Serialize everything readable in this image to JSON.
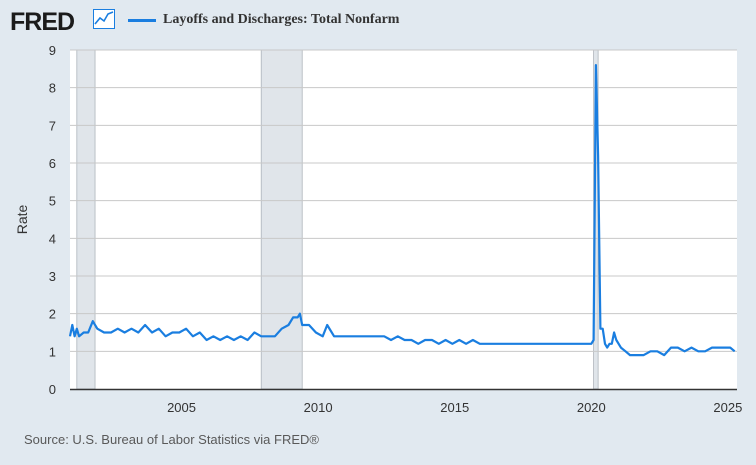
{
  "header": {
    "logo_text": "FRED",
    "legend_label": "Layoffs and Discharges: Total Nonfarm"
  },
  "footer": {
    "source": "Source: U.S. Bureau of Labor Statistics via FRED®"
  },
  "colors": {
    "series": "#1a7ee0",
    "recession": "#e0e5ea",
    "grid": "#c8c8c8",
    "page_bg": "#e1e9f0",
    "plot_bg": "#ffffff"
  },
  "chart_data": {
    "type": "line",
    "title": "Layoffs and Discharges: Total Nonfarm",
    "xlabel": "",
    "ylabel": "Rate",
    "x_range": [
      "2000-12",
      "2025-05"
    ],
    "ylim": [
      0,
      9
    ],
    "y_ticks": [
      0,
      1,
      2,
      3,
      4,
      5,
      6,
      7,
      8,
      9
    ],
    "x_ticks": [
      "2005",
      "2010",
      "2015",
      "2020",
      "2025"
    ],
    "grid": true,
    "recessions": [
      {
        "start": "2001-03",
        "end": "2001-11"
      },
      {
        "start": "2007-12",
        "end": "2009-06"
      },
      {
        "start": "2020-02",
        "end": "2020-04"
      }
    ],
    "series": [
      {
        "name": "Layoffs and Discharges: Total Nonfarm",
        "points": [
          [
            "2000-12",
            1.4
          ],
          [
            "2001-01",
            1.7
          ],
          [
            "2001-02",
            1.4
          ],
          [
            "2001-03",
            1.6
          ],
          [
            "2001-04",
            1.4
          ],
          [
            "2001-06",
            1.5
          ],
          [
            "2001-08",
            1.5
          ],
          [
            "2001-10",
            1.8
          ],
          [
            "2001-12",
            1.6
          ],
          [
            "2002-03",
            1.5
          ],
          [
            "2002-06",
            1.5
          ],
          [
            "2002-09",
            1.6
          ],
          [
            "2002-12",
            1.5
          ],
          [
            "2003-03",
            1.6
          ],
          [
            "2003-06",
            1.5
          ],
          [
            "2003-09",
            1.7
          ],
          [
            "2003-12",
            1.5
          ],
          [
            "2004-03",
            1.6
          ],
          [
            "2004-06",
            1.4
          ],
          [
            "2004-09",
            1.5
          ],
          [
            "2004-12",
            1.5
          ],
          [
            "2005-03",
            1.6
          ],
          [
            "2005-06",
            1.4
          ],
          [
            "2005-09",
            1.5
          ],
          [
            "2005-12",
            1.3
          ],
          [
            "2006-03",
            1.4
          ],
          [
            "2006-06",
            1.3
          ],
          [
            "2006-09",
            1.4
          ],
          [
            "2006-12",
            1.3
          ],
          [
            "2007-03",
            1.4
          ],
          [
            "2007-06",
            1.3
          ],
          [
            "2007-09",
            1.5
          ],
          [
            "2007-12",
            1.4
          ],
          [
            "2008-03",
            1.4
          ],
          [
            "2008-06",
            1.4
          ],
          [
            "2008-09",
            1.6
          ],
          [
            "2008-12",
            1.7
          ],
          [
            "2009-02",
            1.9
          ],
          [
            "2009-04",
            1.9
          ],
          [
            "2009-05",
            2.0
          ],
          [
            "2009-06",
            1.7
          ],
          [
            "2009-09",
            1.7
          ],
          [
            "2009-12",
            1.5
          ],
          [
            "2010-03",
            1.4
          ],
          [
            "2010-05",
            1.7
          ],
          [
            "2010-08",
            1.4
          ],
          [
            "2010-12",
            1.4
          ],
          [
            "2011-03",
            1.4
          ],
          [
            "2011-06",
            1.4
          ],
          [
            "2011-09",
            1.4
          ],
          [
            "2011-12",
            1.4
          ],
          [
            "2012-03",
            1.4
          ],
          [
            "2012-06",
            1.4
          ],
          [
            "2012-09",
            1.3
          ],
          [
            "2012-12",
            1.4
          ],
          [
            "2013-03",
            1.3
          ],
          [
            "2013-06",
            1.3
          ],
          [
            "2013-09",
            1.2
          ],
          [
            "2013-12",
            1.3
          ],
          [
            "2014-03",
            1.3
          ],
          [
            "2014-06",
            1.2
          ],
          [
            "2014-09",
            1.3
          ],
          [
            "2014-12",
            1.2
          ],
          [
            "2015-03",
            1.3
          ],
          [
            "2015-06",
            1.2
          ],
          [
            "2015-09",
            1.3
          ],
          [
            "2015-12",
            1.2
          ],
          [
            "2016-03",
            1.2
          ],
          [
            "2016-06",
            1.2
          ],
          [
            "2016-09",
            1.2
          ],
          [
            "2016-12",
            1.2
          ],
          [
            "2017-03",
            1.2
          ],
          [
            "2017-06",
            1.2
          ],
          [
            "2017-09",
            1.2
          ],
          [
            "2017-12",
            1.2
          ],
          [
            "2018-03",
            1.2
          ],
          [
            "2018-06",
            1.2
          ],
          [
            "2018-09",
            1.2
          ],
          [
            "2018-12",
            1.2
          ],
          [
            "2019-03",
            1.2
          ],
          [
            "2019-06",
            1.2
          ],
          [
            "2019-09",
            1.2
          ],
          [
            "2019-12",
            1.2
          ],
          [
            "2020-01",
            1.2
          ],
          [
            "2020-02",
            1.3
          ],
          [
            "2020-03",
            8.6
          ],
          [
            "2020-04",
            6.2
          ],
          [
            "2020-05",
            1.6
          ],
          [
            "2020-06",
            1.6
          ],
          [
            "2020-07",
            1.2
          ],
          [
            "2020-08",
            1.1
          ],
          [
            "2020-09",
            1.2
          ],
          [
            "2020-10",
            1.2
          ],
          [
            "2020-11",
            1.5
          ],
          [
            "2020-12",
            1.3
          ],
          [
            "2021-02",
            1.1
          ],
          [
            "2021-04",
            1.0
          ],
          [
            "2021-06",
            0.9
          ],
          [
            "2021-08",
            0.9
          ],
          [
            "2021-10",
            0.9
          ],
          [
            "2021-12",
            0.9
          ],
          [
            "2022-03",
            1.0
          ],
          [
            "2022-06",
            1.0
          ],
          [
            "2022-09",
            0.9
          ],
          [
            "2022-12",
            1.1
          ],
          [
            "2023-03",
            1.1
          ],
          [
            "2023-06",
            1.0
          ],
          [
            "2023-09",
            1.1
          ],
          [
            "2023-12",
            1.0
          ],
          [
            "2024-03",
            1.0
          ],
          [
            "2024-06",
            1.1
          ],
          [
            "2024-09",
            1.1
          ],
          [
            "2024-12",
            1.1
          ],
          [
            "2025-02",
            1.1
          ],
          [
            "2025-04",
            1.0
          ]
        ]
      }
    ]
  }
}
